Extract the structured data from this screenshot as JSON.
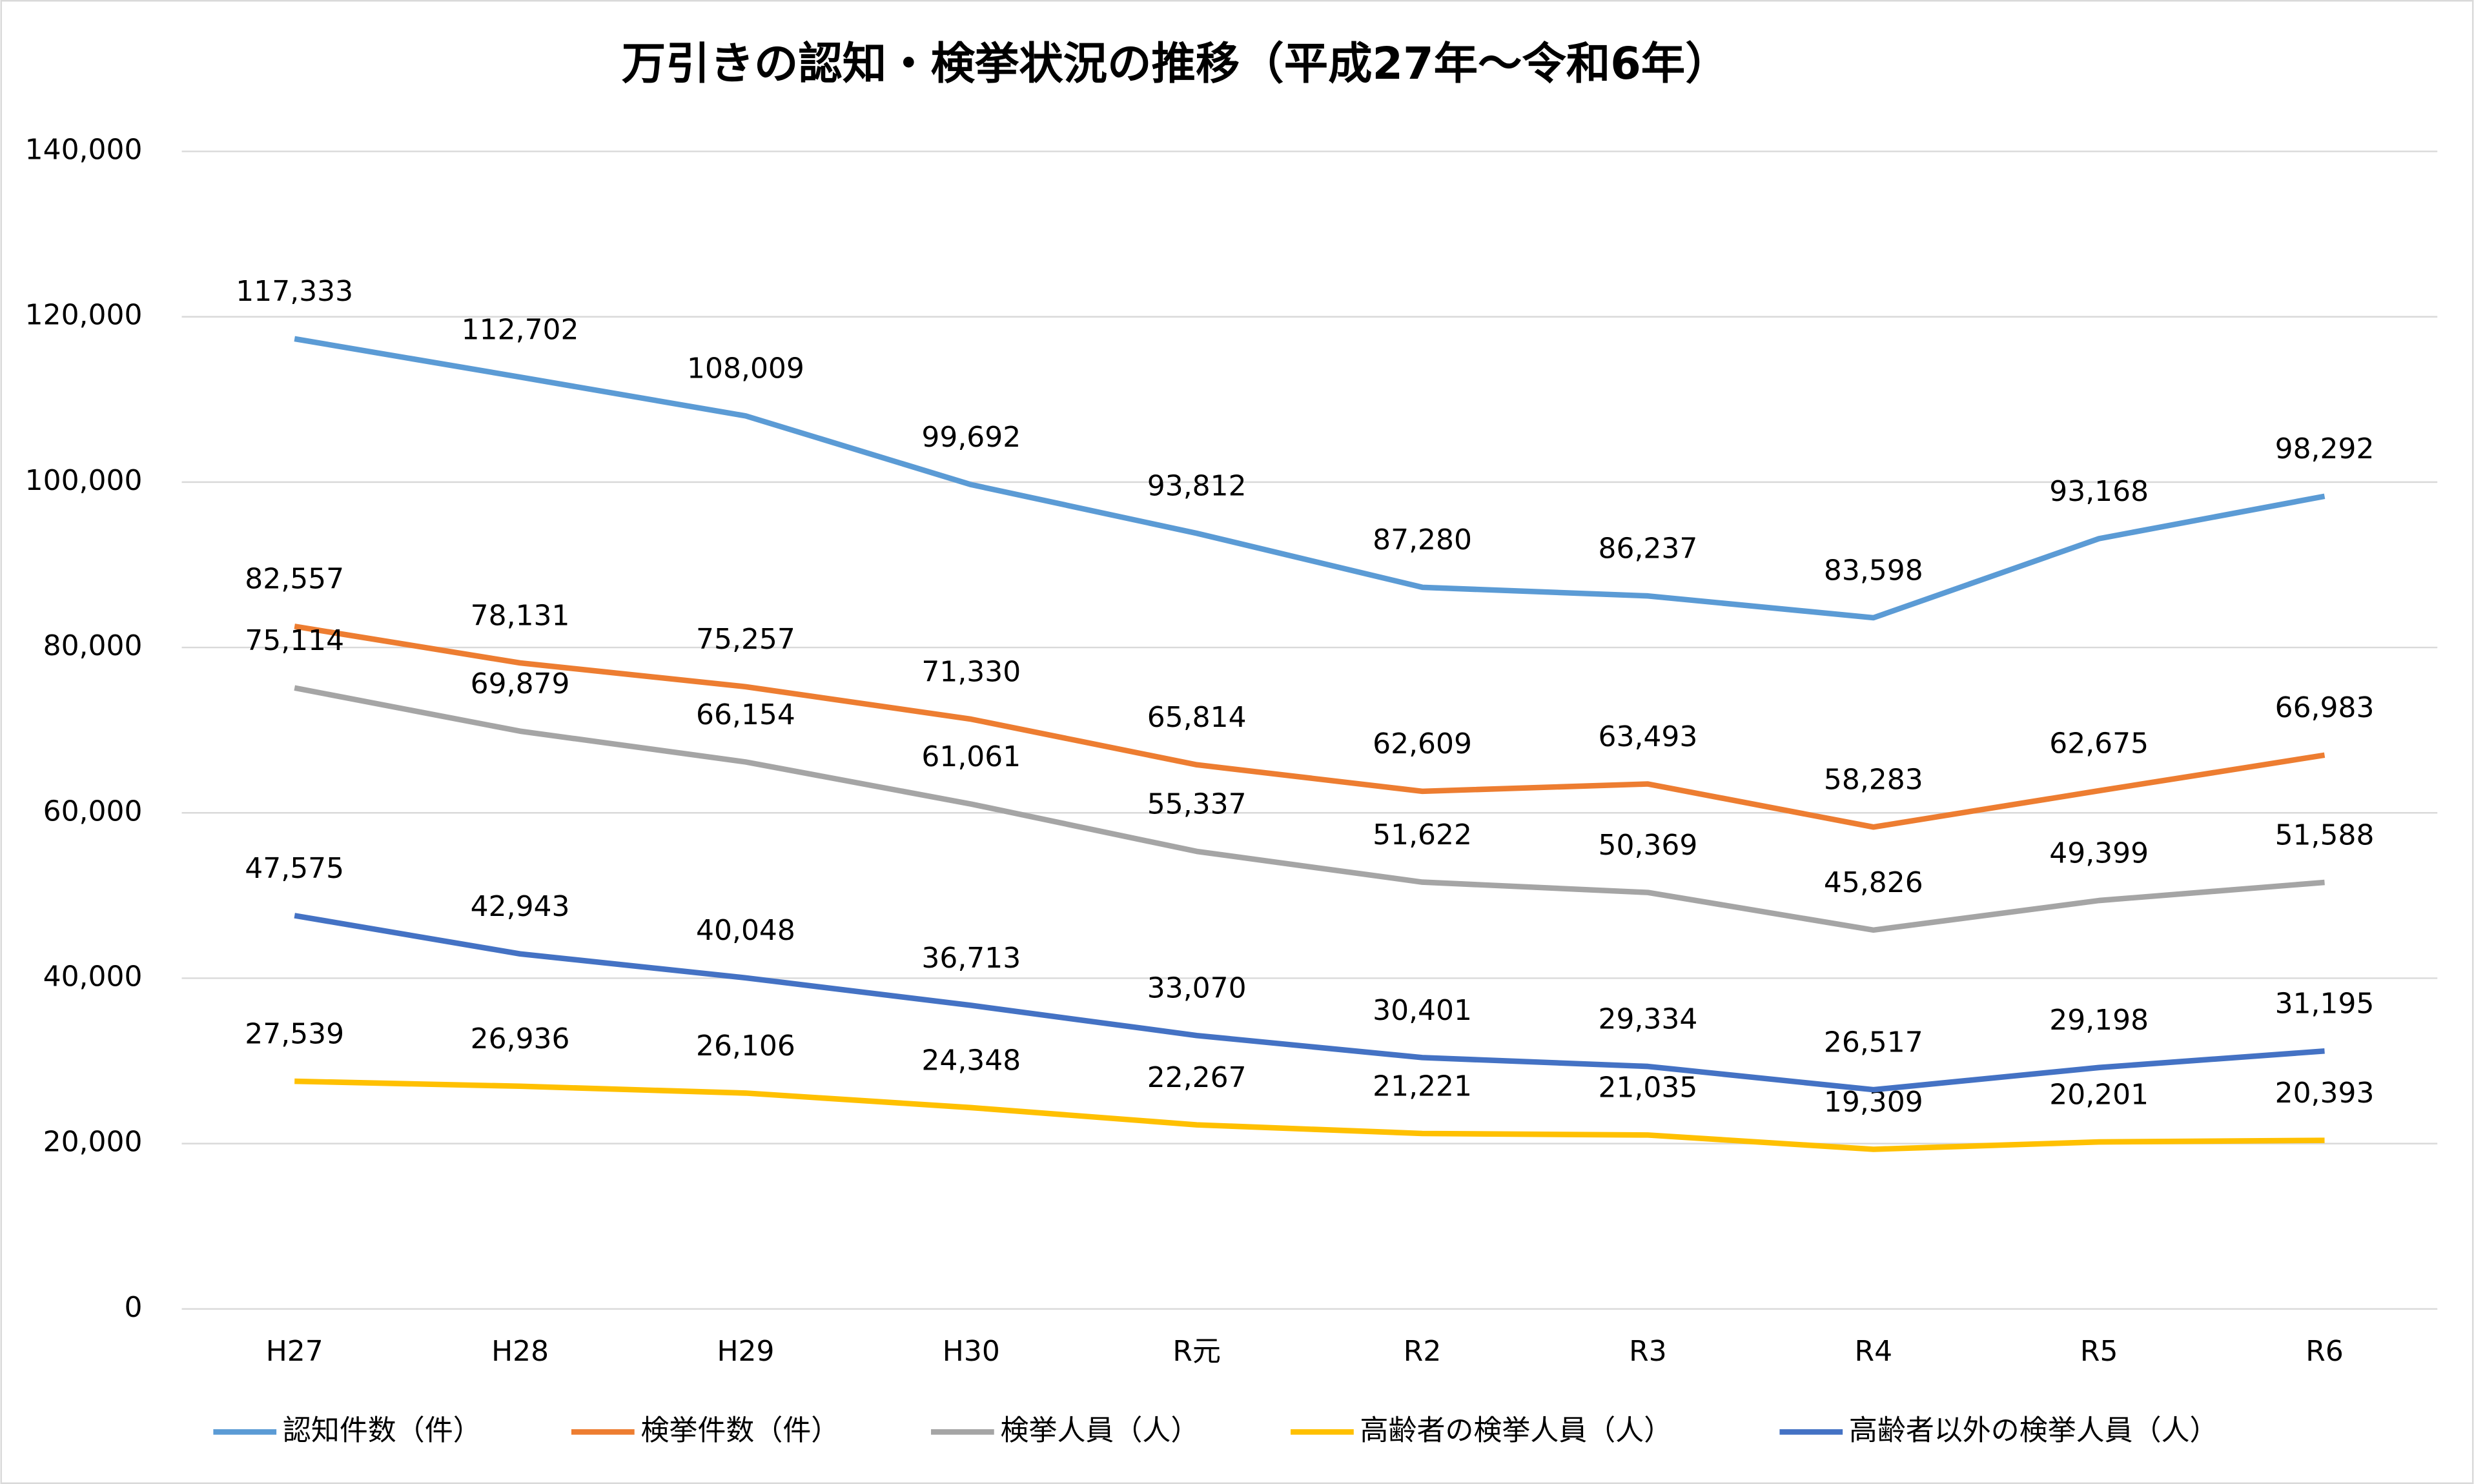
{
  "chart_data": {
    "type": "line",
    "title": "万引きの認知・検挙状況の推移（平成27年～令和6年）",
    "categories": [
      "H27",
      "H28",
      "H29",
      "H30",
      "R元",
      "R2",
      "R3",
      "R4",
      "R5",
      "R6"
    ],
    "series": [
      {
        "name": "認知件数（件）",
        "color": "#5b9bd5",
        "values": [
          117333,
          112702,
          108009,
          99692,
          93812,
          87280,
          86237,
          83598,
          93168,
          98292
        ],
        "value_labels": [
          "117,333",
          "112,702",
          "108,009",
          "99,692",
          "93,812",
          "87,280",
          "86,237",
          "83,598",
          "93,168",
          "98,292"
        ]
      },
      {
        "name": "検挙件数（件）",
        "color": "#ed7d31",
        "values": [
          82557,
          78131,
          75257,
          71330,
          65814,
          62609,
          63493,
          58283,
          62675,
          66983
        ],
        "value_labels": [
          "82,557",
          "78,131",
          "75,257",
          "71,330",
          "65,814",
          "62,609",
          "63,493",
          "58,283",
          "62,675",
          "66,983"
        ]
      },
      {
        "name": "検挙人員（人）",
        "color": "#a5a5a5",
        "values": [
          75114,
          69879,
          66154,
          61061,
          55337,
          51622,
          50369,
          45826,
          49399,
          51588
        ],
        "value_labels": [
          "75,114",
          "69,879",
          "66,154",
          "61,061",
          "55,337",
          "51,622",
          "50,369",
          "45,826",
          "49,399",
          "51,588"
        ]
      },
      {
        "name": "高齢者の検挙人員（人）",
        "color": "#ffc000",
        "values": [
          27539,
          26936,
          26106,
          24348,
          22267,
          21221,
          21035,
          19309,
          20201,
          20393
        ],
        "value_labels": [
          "27,539",
          "26,936",
          "26,106",
          "24,348",
          "22,267",
          "21,221",
          "21,035",
          "19,309",
          "20,201",
          "20,393"
        ]
      },
      {
        "name": "高齢者以外の検挙人員（人）",
        "color": "#4472c4",
        "values": [
          47575,
          42943,
          40048,
          36713,
          33070,
          30401,
          29334,
          26517,
          29198,
          31195
        ],
        "value_labels": [
          "47,575",
          "42,943",
          "40,048",
          "36,713",
          "33,070",
          "30,401",
          "29,334",
          "26,517",
          "29,198",
          "31,195"
        ]
      }
    ],
    "ylim": [
      0,
      140000
    ],
    "yticks": [
      0,
      {
        "value": 20000,
        "label": "20,000"
      },
      {
        "value": 40000,
        "label": "40,000"
      },
      {
        "value": 60000,
        "label": "60,000"
      },
      {
        "value": 80000,
        "label": "80,000"
      },
      {
        "value": 100000,
        "label": "100,000"
      },
      {
        "value": 120000,
        "label": "120,000"
      },
      {
        "value": 140000,
        "label": "140,000"
      }
    ],
    "grid": true,
    "legend": "bottom"
  }
}
